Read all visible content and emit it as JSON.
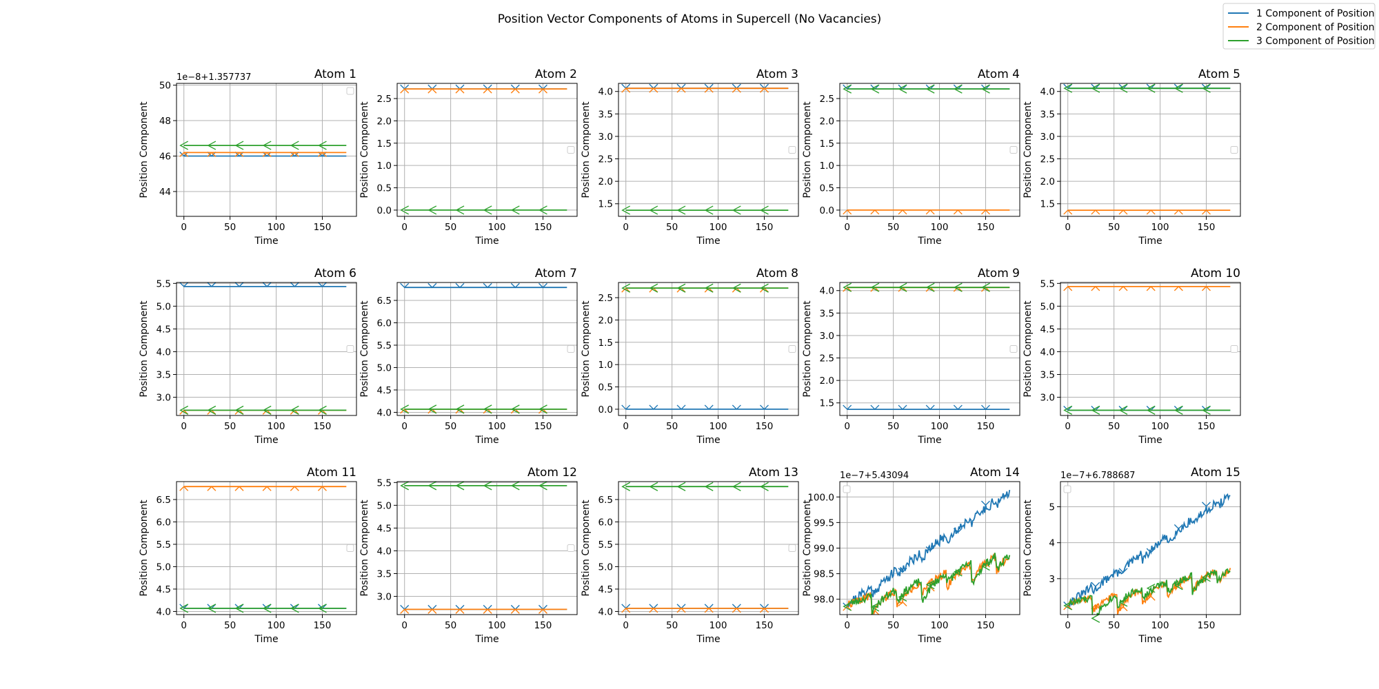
{
  "figure": {
    "title": "Position Vector Components of Atoms in Supercell (No Vacancies)",
    "legend": {
      "placement": "top-right",
      "entries": [
        "1 Component of Position",
        "2 Component of Position",
        "3 Component of Position"
      ]
    },
    "colors": {
      "c1": "#1f77b4",
      "c2": "#ff7f0e",
      "c3": "#2ca02c",
      "grid": "#b0b0b0"
    }
  },
  "chart_data": [
    {
      "type": "line",
      "title": "Atom 1",
      "xlabel": "Time",
      "ylabel": "Position Component",
      "offset_text": "1e−8+1.357737",
      "xlim": [
        -8,
        187
      ],
      "ylim": [
        42.6,
        50.1
      ],
      "xticks": [
        0,
        50,
        100,
        150
      ],
      "yticks": [
        44,
        46,
        48,
        50
      ],
      "yticklabels": [
        "44",
        "46",
        "48",
        "50"
      ],
      "grid": true,
      "empty_legend": "top-right",
      "series": [
        {
          "name": "1 Component of Position",
          "const": 46.0,
          "noise": 1.3,
          "seed": 11
        },
        {
          "name": "2 Component of Position",
          "const": 46.2,
          "noise": 1.2,
          "seed": 12
        },
        {
          "name": "3 Component of Position",
          "const": 46.6,
          "noise": 1.3,
          "seed": 13
        }
      ]
    },
    {
      "type": "line",
      "title": "Atom 2",
      "xlabel": "Time",
      "ylabel": "Position Component",
      "xlim": [
        -8,
        187
      ],
      "ylim": [
        -0.14,
        2.84
      ],
      "xticks": [
        0,
        50,
        100,
        150
      ],
      "yticks": [
        0,
        0.5,
        1,
        1.5,
        2,
        2.5
      ],
      "yticklabels": [
        "0.0",
        "0.5",
        "1.0",
        "1.5",
        "2.0",
        "2.5"
      ],
      "grid": true,
      "empty_legend": "center-right",
      "series": [
        {
          "name": "1 Component of Position",
          "const": 2.715
        },
        {
          "name": "2 Component of Position",
          "const": 2.715
        },
        {
          "name": "3 Component of Position",
          "const": 0.0
        }
      ]
    },
    {
      "type": "line",
      "title": "Atom 3",
      "xlabel": "Time",
      "ylabel": "Position Component",
      "xlim": [
        -8,
        187
      ],
      "ylim": [
        1.22,
        4.18
      ],
      "xticks": [
        0,
        50,
        100,
        150
      ],
      "yticks": [
        1.5,
        2,
        2.5,
        3,
        3.5,
        4
      ],
      "yticklabels": [
        "1.5",
        "2.0",
        "2.5",
        "3.0",
        "3.5",
        "4.0"
      ],
      "grid": true,
      "empty_legend": "center-right",
      "series": [
        {
          "name": "1 Component of Position",
          "const": 4.07
        },
        {
          "name": "2 Component of Position",
          "const": 4.07
        },
        {
          "name": "3 Component of Position",
          "const": 1.357
        }
      ]
    },
    {
      "type": "line",
      "title": "Atom 4",
      "xlabel": "Time",
      "ylabel": "Position Component",
      "xlim": [
        -8,
        187
      ],
      "ylim": [
        -0.14,
        2.84
      ],
      "xticks": [
        0,
        50,
        100,
        150
      ],
      "yticks": [
        0,
        0.5,
        1,
        1.5,
        2,
        2.5
      ],
      "yticklabels": [
        "0.0",
        "0.5",
        "1.0",
        "1.5",
        "2.0",
        "2.5"
      ],
      "grid": true,
      "empty_legend": "center-right",
      "series": [
        {
          "name": "1 Component of Position",
          "const": 2.715
        },
        {
          "name": "2 Component of Position",
          "const": 0.0
        },
        {
          "name": "3 Component of Position",
          "const": 2.715
        }
      ]
    },
    {
      "type": "line",
      "title": "Atom 5",
      "xlabel": "Time",
      "ylabel": "Position Component",
      "xlim": [
        -8,
        187
      ],
      "ylim": [
        1.22,
        4.18
      ],
      "xticks": [
        0,
        50,
        100,
        150
      ],
      "yticks": [
        1.5,
        2,
        2.5,
        3,
        3.5,
        4
      ],
      "yticklabels": [
        "1.5",
        "2.0",
        "2.5",
        "3.0",
        "3.5",
        "4.0"
      ],
      "grid": true,
      "empty_legend": "center-right",
      "series": [
        {
          "name": "1 Component of Position",
          "const": 4.07
        },
        {
          "name": "2 Component of Position",
          "const": 1.357
        },
        {
          "name": "3 Component of Position",
          "const": 4.07
        }
      ]
    },
    {
      "type": "line",
      "title": "Atom 6",
      "xlabel": "Time",
      "ylabel": "Position Component",
      "xlim": [
        -8,
        187
      ],
      "ylim": [
        2.6,
        5.52
      ],
      "xticks": [
        0,
        50,
        100,
        150
      ],
      "yticks": [
        3,
        3.5,
        4,
        4.5,
        5,
        5.5
      ],
      "yticklabels": [
        "3.0",
        "3.5",
        "4.0",
        "4.5",
        "5.0",
        "5.5"
      ],
      "grid": true,
      "empty_legend": "center-right",
      "series": [
        {
          "name": "1 Component of Position",
          "const": 5.431
        },
        {
          "name": "2 Component of Position",
          "const": 2.715
        },
        {
          "name": "3 Component of Position",
          "const": 2.715
        }
      ]
    },
    {
      "type": "line",
      "title": "Atom 7",
      "xlabel": "Time",
      "ylabel": "Position Component",
      "xlim": [
        -8,
        187
      ],
      "ylim": [
        3.93,
        6.9
      ],
      "xticks": [
        0,
        50,
        100,
        150
      ],
      "yticks": [
        4,
        4.5,
        5,
        5.5,
        6,
        6.5
      ],
      "yticklabels": [
        "4.0",
        "4.5",
        "5.0",
        "5.5",
        "6.0",
        "6.5"
      ],
      "grid": true,
      "empty_legend": "center-right",
      "series": [
        {
          "name": "1 Component of Position",
          "const": 6.789
        },
        {
          "name": "2 Component of Position",
          "const": 4.07
        },
        {
          "name": "3 Component of Position",
          "const": 4.07
        }
      ]
    },
    {
      "type": "line",
      "title": "Atom 8",
      "xlabel": "Time",
      "ylabel": "Position Component",
      "xlim": [
        -8,
        187
      ],
      "ylim": [
        -0.14,
        2.84
      ],
      "xticks": [
        0,
        50,
        100,
        150
      ],
      "yticks": [
        0,
        0.5,
        1,
        1.5,
        2,
        2.5
      ],
      "yticklabels": [
        "0.0",
        "0.5",
        "1.0",
        "1.5",
        "2.0",
        "2.5"
      ],
      "grid": true,
      "empty_legend": "center-right",
      "series": [
        {
          "name": "1 Component of Position",
          "const": 0.0
        },
        {
          "name": "2 Component of Position",
          "const": 2.715
        },
        {
          "name": "3 Component of Position",
          "const": 2.715
        }
      ]
    },
    {
      "type": "line",
      "title": "Atom 9",
      "xlabel": "Time",
      "ylabel": "Position Component",
      "xlim": [
        -8,
        187
      ],
      "ylim": [
        1.22,
        4.18
      ],
      "xticks": [
        0,
        50,
        100,
        150
      ],
      "yticks": [
        1.5,
        2,
        2.5,
        3,
        3.5,
        4
      ],
      "yticklabels": [
        "1.5",
        "2.0",
        "2.5",
        "3.0",
        "3.5",
        "4.0"
      ],
      "grid": true,
      "empty_legend": "center-right",
      "series": [
        {
          "name": "1 Component of Position",
          "const": 1.357
        },
        {
          "name": "2 Component of Position",
          "const": 4.07
        },
        {
          "name": "3 Component of Position",
          "const": 4.07
        }
      ]
    },
    {
      "type": "line",
      "title": "Atom 10",
      "xlabel": "Time",
      "ylabel": "Position Component",
      "xlim": [
        -8,
        187
      ],
      "ylim": [
        2.6,
        5.52
      ],
      "xticks": [
        0,
        50,
        100,
        150
      ],
      "yticks": [
        3,
        3.5,
        4,
        4.5,
        5,
        5.5
      ],
      "yticklabels": [
        "3.0",
        "3.5",
        "4.0",
        "4.5",
        "5.0",
        "5.5"
      ],
      "grid": true,
      "empty_legend": "center-right",
      "series": [
        {
          "name": "1 Component of Position",
          "const": 2.715
        },
        {
          "name": "2 Component of Position",
          "const": 5.431
        },
        {
          "name": "3 Component of Position",
          "const": 2.715
        }
      ]
    },
    {
      "type": "line",
      "title": "Atom 11",
      "xlabel": "Time",
      "ylabel": "Position Component",
      "xlim": [
        -8,
        187
      ],
      "ylim": [
        3.93,
        6.9
      ],
      "xticks": [
        0,
        50,
        100,
        150
      ],
      "yticks": [
        4,
        4.5,
        5,
        5.5,
        6,
        6.5
      ],
      "yticklabels": [
        "4.0",
        "4.5",
        "5.0",
        "5.5",
        "6.0",
        "6.5"
      ],
      "grid": true,
      "empty_legend": "center-right",
      "series": [
        {
          "name": "1 Component of Position",
          "const": 4.07
        },
        {
          "name": "2 Component of Position",
          "const": 6.789
        },
        {
          "name": "3 Component of Position",
          "const": 4.07
        }
      ]
    },
    {
      "type": "line",
      "title": "Atom 12",
      "xlabel": "Time",
      "ylabel": "Position Component",
      "xlim": [
        -8,
        187
      ],
      "ylim": [
        2.6,
        5.52
      ],
      "xticks": [
        0,
        50,
        100,
        150
      ],
      "yticks": [
        3,
        3.5,
        4,
        4.5,
        5,
        5.5
      ],
      "yticklabels": [
        "3.0",
        "3.5",
        "4.0",
        "4.5",
        "5.0",
        "5.5"
      ],
      "grid": true,
      "empty_legend": "center-right",
      "series": [
        {
          "name": "1 Component of Position",
          "const": 2.715
        },
        {
          "name": "2 Component of Position",
          "const": 2.715
        },
        {
          "name": "3 Component of Position",
          "const": 5.431
        }
      ]
    },
    {
      "type": "line",
      "title": "Atom 13",
      "xlabel": "Time",
      "ylabel": "Position Component",
      "xlim": [
        -8,
        187
      ],
      "ylim": [
        3.93,
        6.9
      ],
      "xticks": [
        0,
        50,
        100,
        150
      ],
      "yticks": [
        4,
        4.5,
        5,
        5.5,
        6,
        6.5
      ],
      "yticklabels": [
        "4.0",
        "4.5",
        "5.0",
        "5.5",
        "6.0",
        "6.5"
      ],
      "grid": true,
      "empty_legend": "center-right",
      "series": [
        {
          "name": "1 Component of Position",
          "const": 4.07
        },
        {
          "name": "2 Component of Position",
          "const": 4.07
        },
        {
          "name": "3 Component of Position",
          "const": 6.789
        }
      ]
    },
    {
      "type": "line",
      "title": "Atom 14",
      "xlabel": "Time",
      "ylabel": "Position Component",
      "offset_text": "1e−7+5.43094",
      "xlim": [
        -8,
        187
      ],
      "ylim": [
        97.7,
        100.3
      ],
      "xticks": [
        0,
        50,
        100,
        150
      ],
      "yticks": [
        98,
        98.5,
        99,
        99.5,
        100
      ],
      "yticklabels": [
        "98.0",
        "98.5",
        "99.0",
        "99.5",
        "100.0"
      ],
      "grid": true,
      "empty_legend": "top-left",
      "series": [
        {
          "name": "1 Component of Position",
          "start": 97.9,
          "end": 100.15,
          "noise": 0.1,
          "saw": 0.15,
          "seed": 21
        },
        {
          "name": "2 Component of Position",
          "start": 97.9,
          "end": 99.0,
          "noise": 0.08,
          "saw": 0.45,
          "seed": 22
        },
        {
          "name": "3 Component of Position",
          "start": 97.9,
          "end": 99.0,
          "noise": 0.08,
          "saw": 0.45,
          "seed": 23
        }
      ]
    },
    {
      "type": "line",
      "title": "Atom 15",
      "xlabel": "Time",
      "ylabel": "Position Component",
      "offset_text": "1e−7+6.788687",
      "xlim": [
        -8,
        187
      ],
      "ylim": [
        2.0,
        5.7
      ],
      "xticks": [
        0,
        50,
        100,
        150
      ],
      "yticks": [
        3,
        4,
        5
      ],
      "yticklabels": [
        "3",
        "4",
        "5"
      ],
      "grid": true,
      "empty_legend": "top-left",
      "series": [
        {
          "name": "1 Component of Position",
          "start": 2.3,
          "end": 5.4,
          "noise": 0.12,
          "saw": 0.2,
          "seed": 31
        },
        {
          "name": "2 Component of Position",
          "start": 2.3,
          "end": 3.4,
          "noise": 0.1,
          "saw": 0.6,
          "seed": 32
        },
        {
          "name": "3 Component of Position",
          "start": 2.3,
          "end": 3.4,
          "noise": 0.1,
          "saw": 0.6,
          "seed": 33
        }
      ]
    }
  ]
}
